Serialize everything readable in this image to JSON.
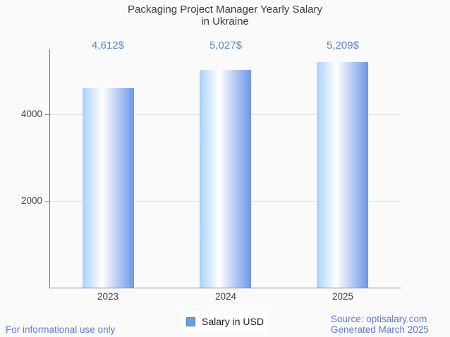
{
  "page": {
    "background": "#fafafa"
  },
  "title": {
    "line1": "Packaging Project Manager Yearly Salary",
    "line2": "in Ukraine"
  },
  "legend": {
    "label": "Salary in USD",
    "swatch_color": "#6d9ce8",
    "background": "#ffffff"
  },
  "footer": {
    "left": "For informational use only",
    "source_line1": "Source: optisalary.com",
    "source_line2": "Generated March 2025",
    "color": "#5b7cda"
  },
  "colors": {
    "value_label": "#5a85d8",
    "axis_label": "#424242",
    "y_axis_line": "#6f6f6f",
    "x_axis_line": "#8a8a8a",
    "gridline": "#e3e3e3",
    "bar_gradient_left": "#aad1fb",
    "bar_gradient_mid": "#ffffff",
    "bar_gradient_right": "#6e96e8"
  },
  "chart_data": {
    "type": "bar",
    "title": "Packaging Project Manager Yearly Salary in Ukraine",
    "categories": [
      "2023",
      "2024",
      "2025"
    ],
    "series": [
      {
        "name": "Salary in USD",
        "values": [
          4612,
          5027,
          5209
        ]
      }
    ],
    "value_labels": [
      "4,612$",
      "5,027$",
      "5,209$"
    ],
    "xlabel": "",
    "ylabel": "",
    "yticks": [
      2000,
      4000
    ],
    "ylim": [
      0,
      5500
    ],
    "grid": true,
    "legend_position": "bottom"
  }
}
